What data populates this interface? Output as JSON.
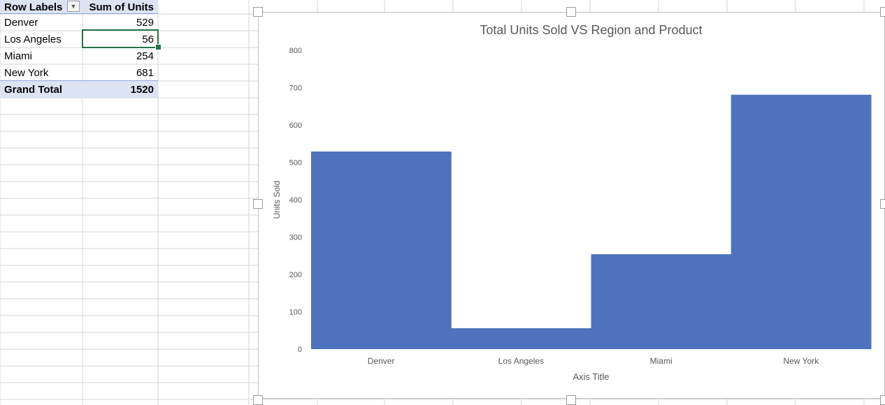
{
  "pivot": {
    "header": {
      "row_labels": "Row Labels",
      "sum_of_units": "Sum of Units"
    },
    "rows": [
      {
        "label": "Denver",
        "value": "529"
      },
      {
        "label": "Los Angeles",
        "value": "56"
      },
      {
        "label": "Miami",
        "value": "254"
      },
      {
        "label": "New York",
        "value": "681"
      }
    ],
    "grand_total": {
      "label": "Grand Total",
      "value": "1520"
    },
    "header_color": "#dce3f3",
    "selection_color": "#217346"
  },
  "chart_data": {
    "type": "bar",
    "title": "Total Units Sold VS Region and Product",
    "xlabel": "Axis Title",
    "ylabel": "Units Sold",
    "categories": [
      "Denver",
      "Los Angeles",
      "Miami",
      "New York"
    ],
    "values": [
      529,
      56,
      254,
      681
    ],
    "ylim": [
      0,
      800
    ],
    "yticks": [
      0,
      100,
      200,
      300,
      400,
      500,
      600,
      700,
      800
    ],
    "bar_color": "#4e72be",
    "grid": false,
    "legend": "none"
  }
}
